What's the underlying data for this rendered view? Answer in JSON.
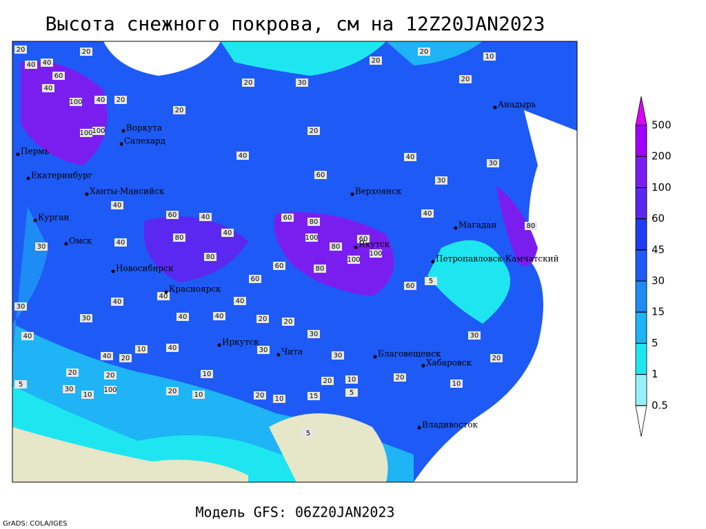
{
  "title": "Высота снежного покрова, см на 12Z20JAN2023",
  "model_label": "Модель GFS: 06Z20JAN2023",
  "credit": "GrADS: COLA/IGES",
  "colorbar": {
    "ticks": [
      500,
      200,
      100,
      60,
      45,
      30,
      15,
      5,
      1,
      0.5
    ],
    "colors": [
      "#dc00ff",
      "#a000ff",
      "#7a1ef0",
      "#5a28f0",
      "#1e3cf0",
      "#1e5af5",
      "#1e8cf5",
      "#1eb4f5",
      "#1ee6f0",
      "#96f0f8",
      "#ffffff"
    ]
  },
  "cities": [
    "Анадырь",
    "Воркута",
    "Салехард",
    "Пермь",
    "Екатеринбург",
    "Ханты-Мансийск",
    "Верхоянск",
    "Курган",
    "Магадан",
    "Омск",
    "Якутск",
    "Петропавловск-Камчатский",
    "Новосибирск",
    "Красноярск",
    "Иркутск",
    "Чита",
    "Благовещенск",
    "Хабаровск",
    "Владивосток"
  ],
  "contour_labels": [
    20,
    40,
    40,
    20,
    60,
    40,
    100,
    40,
    100,
    100,
    20,
    20,
    20,
    30,
    20,
    20,
    10,
    20,
    20,
    40,
    60,
    40,
    30,
    30,
    40,
    60,
    40,
    60,
    80,
    100,
    40,
    80,
    40,
    30,
    80,
    60,
    100,
    100,
    80,
    60,
    80,
    60,
    40,
    80,
    30,
    30,
    40,
    40,
    40,
    40,
    40,
    20,
    20,
    30,
    40,
    40,
    20,
    10,
    40,
    10,
    30,
    30,
    20,
    20,
    30,
    10,
    100,
    20,
    20,
    10,
    20,
    10,
    10,
    15,
    20,
    10,
    5,
    60,
    5,
    5,
    5,
    20,
    30
  ]
}
